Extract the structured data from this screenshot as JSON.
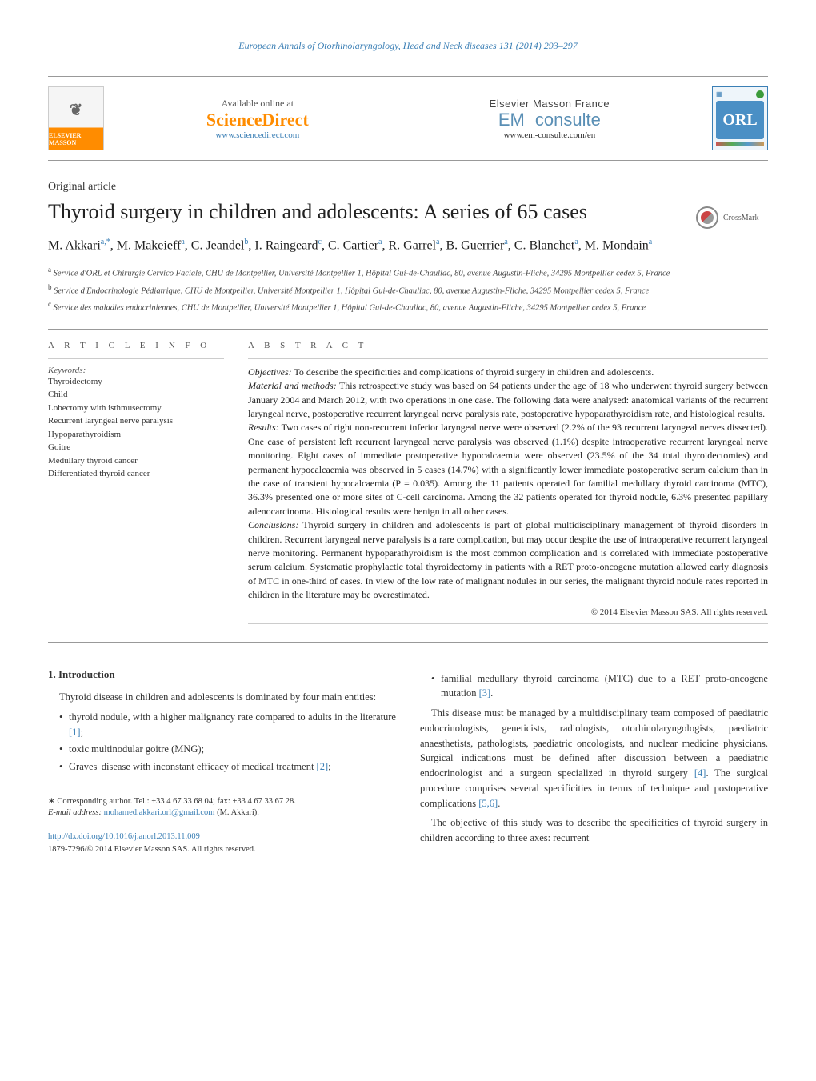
{
  "running_head": "European Annals of Otorhinolaryngology, Head and Neck diseases 131 (2014) 293–297",
  "masthead": {
    "elsevier_label": "ELSEVIER MASSON",
    "online_label": "Available online at",
    "sciencedirect": "ScienceDirect",
    "sd_url": "www.sciencedirect.com",
    "em_label": "Elsevier Masson France",
    "em_brand_em": "EM",
    "em_brand_consulte": "consulte",
    "em_url": "www.em-consulte.com/en",
    "orl_label": "ORL"
  },
  "article_type": "Original article",
  "title": "Thyroid surgery in children and adolescents: A series of 65 cases",
  "crossmark_label": "CrossMark",
  "authors_html": "M. Akkari<sup>a,*</sup>, M. Makeieff<sup>a</sup>, C. Jeandel<sup>b</sup>, I. Raingeard<sup>c</sup>, C. Cartier<sup>a</sup>, R. Garrel<sup>a</sup>, B. Guerrier<sup>a</sup>, C. Blanchet<sup>a</sup>, M. Mondain<sup>a</sup>",
  "affiliations": {
    "a": "Service d'ORL et Chirurgie Cervico Faciale, CHU de Montpellier, Université Montpellier 1, Hôpital Gui-de-Chauliac, 80, avenue Augustin-Fliche, 34295 Montpellier cedex 5, France",
    "b": "Service d'Endocrinologie Pédiatrique, CHU de Montpellier, Université Montpellier 1, Hôpital Gui-de-Chauliac, 80, avenue Augustin-Fliche, 34295 Montpellier cedex 5, France",
    "c": "Service des maladies endocriniennes, CHU de Montpellier, Université Montpellier 1, Hôpital Gui-de-Chauliac, 80, avenue Augustin-Fliche, 34295 Montpellier cedex 5, France"
  },
  "info_head": "A R T I C L E   I N F O",
  "keywords_head": "Keywords:",
  "keywords": [
    "Thyroidectomy",
    "Child",
    "Lobectomy with isthmusectomy",
    "Recurrent laryngeal nerve paralysis",
    "Hypoparathyroidism",
    "Goitre",
    "Medullary thyroid cancer",
    "Differentiated thyroid cancer"
  ],
  "abstract_head": "A B S T R A C T",
  "abstract": {
    "objectives_label": "Objectives:",
    "objectives": "To describe the specificities and complications of thyroid surgery in children and adolescents.",
    "material_label": "Material and methods:",
    "material": "This retrospective study was based on 64 patients under the age of 18 who underwent thyroid surgery between January 2004 and March 2012, with two operations in one case. The following data were analysed: anatomical variants of the recurrent laryngeal nerve, postoperative recurrent laryngeal nerve paralysis rate, postoperative hypoparathyroidism rate, and histological results.",
    "results_label": "Results:",
    "results": "Two cases of right non-recurrent inferior laryngeal nerve were observed (2.2% of the 93 recurrent laryngeal nerves dissected). One case of persistent left recurrent laryngeal nerve paralysis was observed (1.1%) despite intraoperative recurrent laryngeal nerve monitoring. Eight cases of immediate postoperative hypocalcaemia were observed (23.5% of the 34 total thyroidectomies) and permanent hypocalcaemia was observed in 5 cases (14.7%) with a significantly lower immediate postoperative serum calcium than in the case of transient hypocalcaemia (P = 0.035). Among the 11 patients operated for familial medullary thyroid carcinoma (MTC), 36.3% presented one or more sites of C-cell carcinoma. Among the 32 patients operated for thyroid nodule, 6.3% presented papillary adenocarcinoma. Histological results were benign in all other cases.",
    "conclusions_label": "Conclusions:",
    "conclusions": "Thyroid surgery in children and adolescents is part of global multidisciplinary management of thyroid disorders in children. Recurrent laryngeal nerve paralysis is a rare complication, but may occur despite the use of intraoperative recurrent laryngeal nerve monitoring. Permanent hypoparathyroidism is the most common complication and is correlated with immediate postoperative serum calcium. Systematic prophylactic total thyroidectomy in patients with a RET proto-oncogene mutation allowed early diagnosis of MTC in one-third of cases. In view of the low rate of malignant nodules in our series, the malignant thyroid nodule rates reported in children in the literature may be overestimated."
  },
  "copyright": "© 2014 Elsevier Masson SAS. All rights reserved.",
  "body": {
    "intro_head": "1.  Introduction",
    "intro_para1": "Thyroid disease in children and adolescents is dominated by four main entities:",
    "intro_bullets_left": [
      "thyroid nodule, with a higher malignancy rate compared to adults in the literature [1];",
      "toxic multinodular goitre (MNG);",
      "Graves' disease with inconstant efficacy of medical treatment [2];"
    ],
    "intro_bullet_right": "familial medullary thyroid carcinoma (MTC) due to a RET proto-oncogene mutation [3].",
    "right_para1": "This disease must be managed by a multidisciplinary team composed of paediatric endocrinologists, geneticists, radiologists, otorhinolaryngologists, paediatric anaesthetists, pathologists, paediatric oncologists, and nuclear medicine physicians. Surgical indications must be defined after discussion between a paediatric endocrinologist and a surgeon specialized in thyroid surgery [4]. The surgical procedure comprises several specificities in terms of technique and postoperative complications [5,6].",
    "right_para2": "The objective of this study was to describe the specificities of thyroid surgery in children according to three axes: recurrent"
  },
  "footnotes": {
    "corr_label": "∗ Corresponding author. Tel.: +33 4 67 33 68 04; fax: +33 4 67 33 67 28.",
    "email_label": "E-mail address:",
    "email": "mohamed.akkari.orl@gmail.com",
    "email_author": "(M. Akkari)."
  },
  "doi": {
    "url": "http://dx.doi.org/10.1016/j.anorl.2013.11.009",
    "issn_line": "1879-7296/© 2014 Elsevier Masson SAS. All rights reserved."
  },
  "colors": {
    "link": "#3b7fb5",
    "orange": "#ff8c00",
    "text": "#333333",
    "rule": "#999999"
  }
}
